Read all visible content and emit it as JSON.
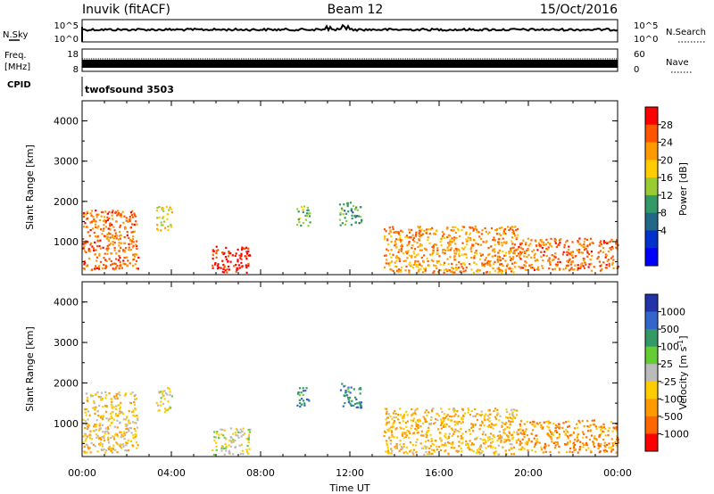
{
  "header": {
    "station": "Inuvik (fitACF)",
    "beam": "Beam 12",
    "date": "15/Oct/2016"
  },
  "strips": {
    "nsky_label": "N.Sky",
    "nsearch_label": "N.Search",
    "noise_ticks_left": [
      "10^5",
      "10^0"
    ],
    "noise_ticks_right": [
      "10^5",
      "10^0"
    ],
    "freq_label_1": "Freq.",
    "freq_label_2": "[MHz]",
    "freq_ticks": [
      "18",
      "8"
    ],
    "nave_label": "Nave",
    "nave_ticks": [
      "60",
      "0"
    ],
    "cpid_label": "CPID",
    "cpid_value": "twofsound 3503"
  },
  "panels": {
    "ylabel": "Slant Range [km]",
    "yticks": [
      "4000",
      "3000",
      "2000",
      "1000"
    ],
    "xticks": [
      "00:00",
      "04:00",
      "08:00",
      "12:00",
      "16:00",
      "20:00",
      "00:00"
    ],
    "xlabel": "Time UT"
  },
  "power_scale": {
    "label": "Power [dB]",
    "ticks": [
      "28",
      "24",
      "20",
      "16",
      "12",
      "8",
      "4"
    ],
    "colors": [
      "#ff0000",
      "#ff5500",
      "#ff9900",
      "#ffcc00",
      "#99cc33",
      "#339966",
      "#226688",
      "#0033cc",
      "#0000ff"
    ]
  },
  "velocity_scale": {
    "label": "Velocity [m s",
    "label_sup": "-1",
    "label_end": "]",
    "ticks": [
      "1000",
      "500",
      "100",
      "25",
      "-25",
      "-100",
      "-500",
      "-1000"
    ],
    "colors": [
      "#2233aa",
      "#3366cc",
      "#339966",
      "#66cc33",
      "#bbbbbb",
      "#ffcc00",
      "#ff9900",
      "#ff6600",
      "#ff0000"
    ]
  },
  "chart_data": {
    "type": "heatmap",
    "title": "Inuvik (fitACF)",
    "subtitle": "Beam 12",
    "xlabel": "Time UT",
    "ylabel": "Slant Range [km]",
    "xlim": [
      "00:00",
      "24:00"
    ],
    "ylim": [
      180,
      4500
    ],
    "panels": [
      {
        "quantity": "Power",
        "units": "dB",
        "colorbar_range": [
          0,
          30
        ],
        "echo_regions": [
          {
            "t_start": 0.0,
            "t_end": 2.5,
            "r_min": 300,
            "r_max": 1800,
            "value": 24
          },
          {
            "t_start": 3.3,
            "t_end": 4.0,
            "r_min": 1300,
            "r_max": 1900,
            "value": 18
          },
          {
            "t_start": 5.8,
            "t_end": 7.5,
            "r_min": 250,
            "r_max": 900,
            "value": 28
          },
          {
            "t_start": 9.6,
            "t_end": 10.2,
            "r_min": 1400,
            "r_max": 1900,
            "value": 14
          },
          {
            "t_start": 11.5,
            "t_end": 12.5,
            "r_min": 1400,
            "r_max": 2000,
            "value": 12
          },
          {
            "t_start": 13.5,
            "t_end": 19.5,
            "r_min": 250,
            "r_max": 1400,
            "value": 22
          },
          {
            "t_start": 19.5,
            "t_end": 24.0,
            "r_min": 300,
            "r_max": 1100,
            "value": 24
          }
        ]
      },
      {
        "quantity": "Velocity",
        "units": "m s-1",
        "colorbar_range": [
          -1000,
          1000
        ],
        "echo_regions": [
          {
            "t_start": 0.0,
            "t_end": 2.5,
            "r_min": 300,
            "r_max": 1800,
            "value": -200
          },
          {
            "t_start": 3.3,
            "t_end": 4.0,
            "r_min": 1300,
            "r_max": 1900,
            "value": -100
          },
          {
            "t_start": 5.8,
            "t_end": 7.5,
            "r_min": 250,
            "r_max": 900,
            "value": 0
          },
          {
            "t_start": 9.6,
            "t_end": 10.2,
            "r_min": 1400,
            "r_max": 1900,
            "value": 500
          },
          {
            "t_start": 11.5,
            "t_end": 12.5,
            "r_min": 1400,
            "r_max": 2000,
            "value": 500
          },
          {
            "t_start": 13.5,
            "t_end": 19.5,
            "r_min": 250,
            "r_max": 1400,
            "value": -300
          },
          {
            "t_start": 19.5,
            "t_end": 24.0,
            "r_min": 300,
            "r_max": 1100,
            "value": -500
          }
        ]
      }
    ]
  }
}
